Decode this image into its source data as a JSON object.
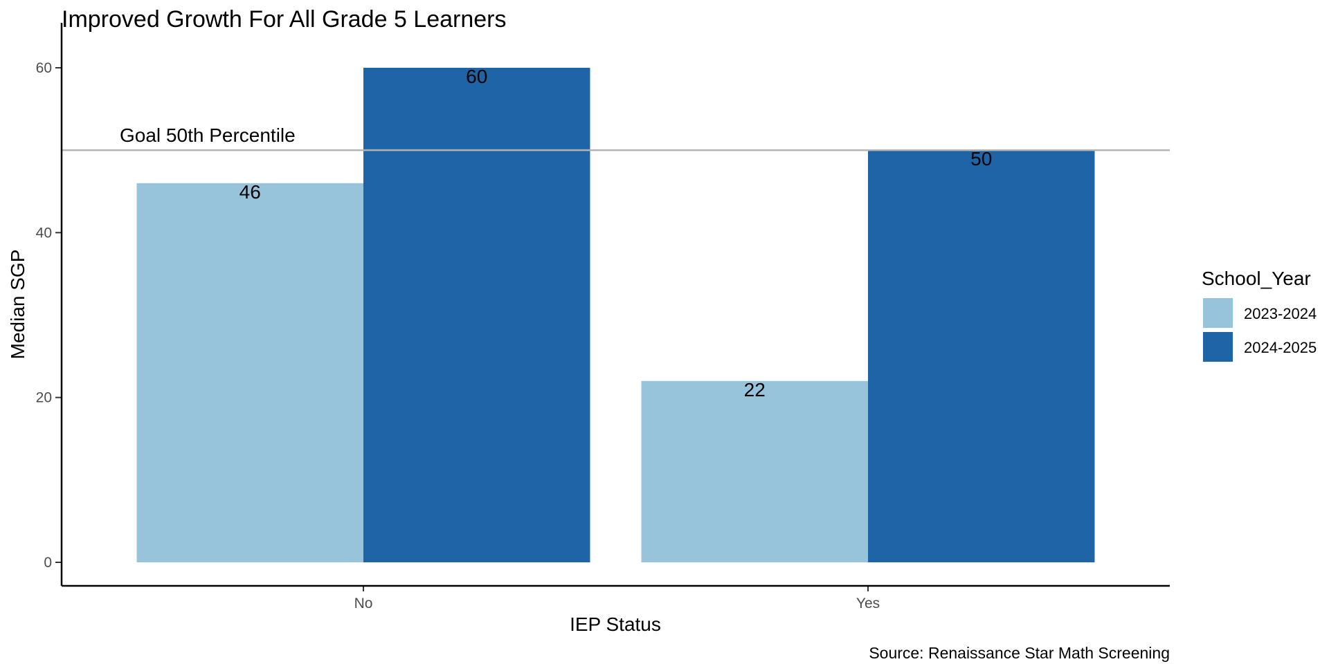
{
  "chart_data": {
    "type": "bar",
    "title": "Improved Growth For All Grade 5 Learners",
    "xlabel": "IEP Status",
    "ylabel": "Median SGP",
    "caption": "Source: Renaissance Star Math Screening",
    "categories": [
      "No",
      "Yes"
    ],
    "series": [
      {
        "name": "2023-2024",
        "values": [
          46,
          22
        ],
        "color": "#97c3db"
      },
      {
        "name": "2024-2025",
        "values": [
          60,
          50
        ],
        "color": "#1e64a6"
      }
    ],
    "ylim": [
      0,
      60
    ],
    "yticks": [
      0,
      20,
      40,
      60
    ],
    "reference_line": {
      "value": 50,
      "label": "Goal 50th Percentile",
      "color": "#b3b3b3"
    },
    "legend": {
      "title": "School_Year",
      "position": "right"
    },
    "grid": false
  }
}
